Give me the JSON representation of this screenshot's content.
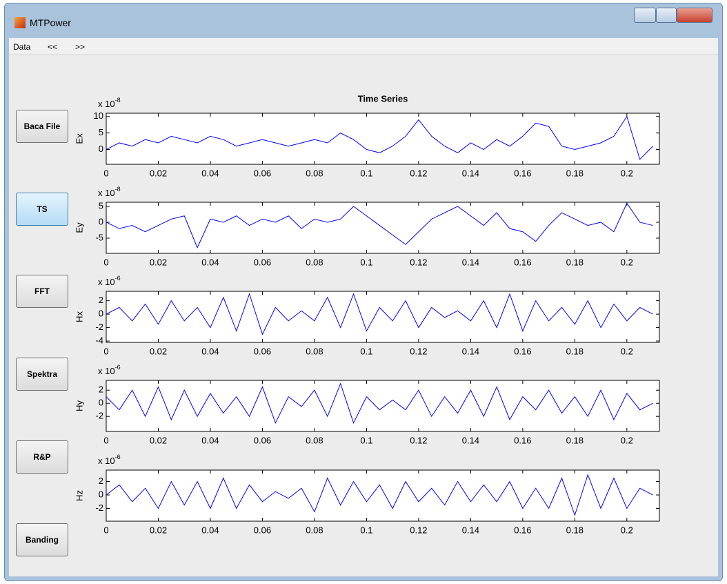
{
  "window": {
    "title": "MTPower"
  },
  "menu": [
    "Data",
    "<<",
    ">>"
  ],
  "buttons": [
    "Baca File",
    "TS",
    "FFT",
    "Spektra",
    "R&P",
    "Banding"
  ],
  "chart_data": [
    {
      "type": "line",
      "title": "Time Series",
      "y_label": "Ex",
      "scale_label": "x 10",
      "scale_exponent": "-8",
      "x": [
        0,
        0.005,
        0.01,
        0.015,
        0.02,
        0.025,
        0.03,
        0.035,
        0.04,
        0.045,
        0.05,
        0.055,
        0.06,
        0.065,
        0.07,
        0.075,
        0.08,
        0.085,
        0.09,
        0.095,
        0.1,
        0.105,
        0.11,
        0.115,
        0.12,
        0.125,
        0.13,
        0.135,
        0.14,
        0.145,
        0.15,
        0.155,
        0.16,
        0.165,
        0.17,
        0.175,
        0.18,
        0.185,
        0.19,
        0.195,
        0.2,
        0.205,
        0.21
      ],
      "xlim": [
        0,
        0.2125
      ],
      "xticks": [
        0,
        0.02,
        0.04,
        0.06,
        0.08,
        0.1,
        0.12,
        0.14,
        0.16,
        0.18,
        0.2
      ],
      "ylim": [
        -4.5,
        11
      ],
      "yticks": [
        0,
        5,
        10
      ],
      "series": [
        {
          "color": "#0000ff",
          "values": [
            0,
            2,
            1,
            3,
            2,
            4,
            3,
            2,
            4,
            3,
            1,
            2,
            3,
            2,
            1,
            2,
            3,
            2,
            5,
            3,
            0,
            -1,
            1,
            4,
            9,
            4,
            1,
            -1,
            2,
            0,
            3,
            1,
            4,
            8,
            7,
            1,
            0,
            1,
            2,
            4,
            10,
            -3,
            1
          ]
        }
      ]
    },
    {
      "type": "line",
      "y_label": "Ey",
      "scale_label": "x 10",
      "scale_exponent": "-8",
      "x": [
        0,
        0.005,
        0.01,
        0.015,
        0.02,
        0.025,
        0.03,
        0.035,
        0.04,
        0.045,
        0.05,
        0.055,
        0.06,
        0.065,
        0.07,
        0.075,
        0.08,
        0.085,
        0.09,
        0.095,
        0.1,
        0.105,
        0.11,
        0.115,
        0.12,
        0.125,
        0.13,
        0.135,
        0.14,
        0.145,
        0.15,
        0.155,
        0.16,
        0.165,
        0.17,
        0.175,
        0.18,
        0.185,
        0.19,
        0.195,
        0.2,
        0.205,
        0.21
      ],
      "xlim": [
        0,
        0.2125
      ],
      "xticks": [
        0,
        0.02,
        0.04,
        0.06,
        0.08,
        0.1,
        0.12,
        0.14,
        0.16,
        0.18,
        0.2
      ],
      "ylim": [
        -9.8,
        6.3
      ],
      "yticks": [
        -5,
        0,
        5
      ],
      "series": [
        {
          "color": "#0000ff",
          "values": [
            0,
            -2,
            -1,
            -3,
            -1,
            1,
            2,
            -8,
            1,
            0,
            2,
            -1,
            1,
            0,
            2,
            -2,
            1,
            0,
            1,
            5,
            2,
            -1,
            -4,
            -7,
            -3,
            1,
            3,
            5,
            2,
            -1,
            3,
            -2,
            -3,
            -6,
            -1,
            3,
            1,
            -1,
            0,
            -3,
            6,
            0,
            -1
          ]
        }
      ]
    },
    {
      "type": "line",
      "y_label": "Hx",
      "scale_label": "x 10",
      "scale_exponent": "-6",
      "x": [
        0,
        0.005,
        0.01,
        0.015,
        0.02,
        0.025,
        0.03,
        0.035,
        0.04,
        0.045,
        0.05,
        0.055,
        0.06,
        0.065,
        0.07,
        0.075,
        0.08,
        0.085,
        0.09,
        0.095,
        0.1,
        0.105,
        0.11,
        0.115,
        0.12,
        0.125,
        0.13,
        0.135,
        0.14,
        0.145,
        0.15,
        0.155,
        0.16,
        0.165,
        0.17,
        0.175,
        0.18,
        0.185,
        0.19,
        0.195,
        0.2,
        0.205,
        0.21
      ],
      "xlim": [
        0,
        0.2125
      ],
      "xticks": [
        0,
        0.02,
        0.04,
        0.06,
        0.08,
        0.1,
        0.12,
        0.14,
        0.16,
        0.18,
        0.2
      ],
      "ylim": [
        -4.2,
        3.4
      ],
      "yticks": [
        -4,
        -2,
        0,
        2
      ],
      "series": [
        {
          "color": "#0000ff",
          "values": [
            0,
            1,
            -1,
            1.5,
            -1.5,
            2,
            -1,
            1,
            -2,
            2.5,
            -2.5,
            3,
            -3,
            1,
            -1,
            0.5,
            -1,
            2.5,
            -2,
            3,
            -2.5,
            1,
            -1,
            2,
            -2,
            1,
            -0.5,
            0.5,
            -1,
            2,
            -2,
            3,
            -2.5,
            2,
            -1,
            1,
            -1.5,
            2,
            -2,
            1.5,
            -1,
            1,
            0
          ]
        }
      ]
    },
    {
      "type": "line",
      "y_label": "Hy",
      "scale_label": "x 10",
      "scale_exponent": "-6",
      "x": [
        0,
        0.005,
        0.01,
        0.015,
        0.02,
        0.025,
        0.03,
        0.035,
        0.04,
        0.045,
        0.05,
        0.055,
        0.06,
        0.065,
        0.07,
        0.075,
        0.08,
        0.085,
        0.09,
        0.095,
        0.1,
        0.105,
        0.11,
        0.115,
        0.12,
        0.125,
        0.13,
        0.135,
        0.14,
        0.145,
        0.15,
        0.155,
        0.16,
        0.165,
        0.17,
        0.175,
        0.18,
        0.185,
        0.19,
        0.195,
        0.2,
        0.205,
        0.21
      ],
      "xlim": [
        0,
        0.2125
      ],
      "xticks": [
        0,
        0.02,
        0.04,
        0.06,
        0.08,
        0.1,
        0.12,
        0.14,
        0.16,
        0.18,
        0.2
      ],
      "ylim": [
        -4.3,
        3.5
      ],
      "yticks": [
        -2,
        0,
        2
      ],
      "series": [
        {
          "color": "#0000ff",
          "values": [
            1,
            -1,
            2,
            -2,
            2.5,
            -2.5,
            2,
            -2,
            1.5,
            -1.5,
            1,
            -2,
            2.5,
            -3,
            1,
            -0.5,
            2,
            -2,
            3,
            -3,
            1,
            -1,
            0.5,
            -1,
            2,
            -2,
            1,
            -1.5,
            2,
            -2,
            2.5,
            -2.5,
            1,
            -1,
            2,
            -1.5,
            1,
            -2,
            2,
            -2.5,
            1.5,
            -1,
            0
          ]
        }
      ]
    },
    {
      "type": "line",
      "y_label": "Hz",
      "scale_label": "x 10",
      "scale_exponent": "-6",
      "x": [
        0,
        0.005,
        0.01,
        0.015,
        0.02,
        0.025,
        0.03,
        0.035,
        0.04,
        0.045,
        0.05,
        0.055,
        0.06,
        0.065,
        0.07,
        0.075,
        0.08,
        0.085,
        0.09,
        0.095,
        0.1,
        0.105,
        0.11,
        0.115,
        0.12,
        0.125,
        0.13,
        0.135,
        0.14,
        0.145,
        0.15,
        0.155,
        0.16,
        0.165,
        0.17,
        0.175,
        0.18,
        0.185,
        0.19,
        0.195,
        0.2,
        0.205,
        0.21
      ],
      "xlim": [
        0,
        0.2125
      ],
      "xticks": [
        0,
        0.02,
        0.04,
        0.06,
        0.08,
        0.1,
        0.12,
        0.14,
        0.16,
        0.18,
        0.2
      ],
      "ylim": [
        -3.9,
        3.7
      ],
      "yticks": [
        -2,
        0,
        2
      ],
      "series": [
        {
          "color": "#0000ff",
          "values": [
            0,
            1.5,
            -1,
            1,
            -2,
            2,
            -1.5,
            2,
            -2,
            2.5,
            -2,
            1.5,
            -1,
            0.5,
            -0.5,
            1,
            -2.5,
            2.5,
            -1.5,
            2,
            -1,
            1.5,
            -2,
            2,
            -1,
            1,
            -1.5,
            2,
            -1,
            1.5,
            -1,
            2,
            -2,
            1,
            -2,
            2.5,
            -3,
            3,
            -2,
            2.5,
            -2,
            1,
            0
          ]
        }
      ]
    }
  ]
}
